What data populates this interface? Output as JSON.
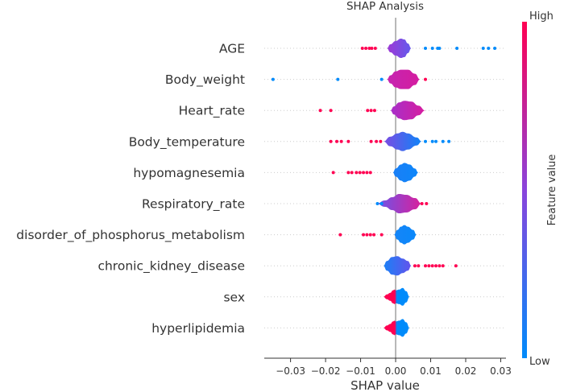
{
  "chart_data": {
    "type": "violin",
    "title": "SHAP Analysis",
    "xlabel": "SHAP value",
    "ylabel": "",
    "xlim": [
      -0.0375,
      0.0315
    ],
    "xticks": [
      -0.03,
      -0.02,
      -0.01,
      0.0,
      0.01,
      0.02,
      0.03
    ],
    "xtick_labels": [
      "−0.03",
      "−0.02",
      "−0.01",
      "0.00",
      "0.01",
      "0.02",
      "0.03"
    ],
    "colorbar": {
      "label": "Feature value",
      "high_label": "High",
      "low_label": "Low",
      "high_color": "#ff0052",
      "low_color": "#008bfb"
    },
    "features": [
      {
        "name": "AGE",
        "shape": [
          [
            -0.0025,
            0
          ],
          [
            -0.0015,
            5
          ],
          [
            0,
            9
          ],
          [
            0.0015,
            12
          ],
          [
            0.0025,
            11
          ],
          [
            0.0035,
            6
          ],
          [
            0.0045,
            0
          ]
        ],
        "color_left": "#9a3bd6",
        "color_right": "#6a56ea",
        "color_left_x": -0.002,
        "color_right_x": 0.0035,
        "high_points": [
          -0.0095,
          -0.0085,
          -0.0075,
          -0.0068,
          -0.0058
        ],
        "low_points": [
          0.0085,
          0.0105,
          0.012,
          0.0125,
          0.0175,
          0.025,
          0.0265,
          0.0283
        ]
      },
      {
        "name": "Body_weight",
        "shape": [
          [
            -0.0025,
            0
          ],
          [
            -0.0015,
            5
          ],
          [
            0,
            10
          ],
          [
            0.0015,
            12
          ],
          [
            0.0035,
            12
          ],
          [
            0.0055,
            7
          ],
          [
            0.007,
            0
          ]
        ],
        "color_left": "#c624b0",
        "color_right": "#d41da0",
        "color_left_x": -0.002,
        "color_right_x": 0.0065,
        "high_points": [
          0.0085
        ],
        "low_points": [
          -0.035,
          -0.0165,
          -0.004
        ]
      },
      {
        "name": "Heart_rate",
        "shape": [
          [
            -0.0015,
            0
          ],
          [
            -0.0005,
            5
          ],
          [
            0.001,
            10
          ],
          [
            0.0025,
            12
          ],
          [
            0.0045,
            11
          ],
          [
            0.0065,
            6
          ],
          [
            0.0085,
            0
          ]
        ],
        "color_left": "#a630ca",
        "color_right": "#d81c9e",
        "color_left_x": -0.0015,
        "color_right_x": 0.0085,
        "high_points": [
          -0.0215,
          -0.0185,
          -0.008,
          -0.007,
          -0.006
        ],
        "low_points": []
      },
      {
        "name": "Body_temperature",
        "shape": [
          [
            -0.0035,
            0
          ],
          [
            -0.0015,
            6
          ],
          [
            0.0005,
            10
          ],
          [
            0.002,
            12
          ],
          [
            0.0035,
            10
          ],
          [
            0.006,
            5
          ],
          [
            0.0075,
            0
          ]
        ],
        "color_left": "#7d4be2",
        "color_right": "#0d84f8",
        "color_left_x": -0.0035,
        "color_right_x": 0.0075,
        "high_points": [
          -0.0185,
          -0.0168,
          -0.0155,
          -0.0135,
          -0.007,
          -0.0055,
          -0.0043
        ],
        "low_points": [
          0.0085,
          0.0105,
          0.0115,
          0.0135,
          0.0152
        ]
      },
      {
        "name": "hypomagnesemia",
        "shape": [
          [
            -0.0008,
            0
          ],
          [
            0,
            5
          ],
          [
            0.0015,
            10
          ],
          [
            0.0025,
            12
          ],
          [
            0.004,
            10
          ],
          [
            0.0055,
            5
          ],
          [
            0.0065,
            0
          ]
        ],
        "color_left": "#1a7ff6",
        "color_right": "#0d86fa",
        "color_left_x": -0.0008,
        "color_right_x": 0.0065,
        "high_points": [
          -0.0178,
          -0.0135,
          -0.0125,
          -0.0112,
          -0.0102,
          -0.0092,
          -0.0082,
          -0.0072
        ],
        "low_points": []
      },
      {
        "name": "Respiratory_rate",
        "shape": [
          [
            -0.0055,
            0
          ],
          [
            -0.003,
            4
          ],
          [
            -0.001,
            8
          ],
          [
            0.001,
            12
          ],
          [
            0.003,
            11
          ],
          [
            0.0055,
            7
          ],
          [
            0.0075,
            0
          ]
        ],
        "color_left": "#6a56ea",
        "color_right": "#da1f9b",
        "color_left_x": -0.0055,
        "color_right_x": 0.0075,
        "high_points": [
          0.0075,
          0.0088
        ],
        "low_points": [
          -0.0052,
          -0.004
        ]
      },
      {
        "name": "disorder_of_phosphorus_metabolism",
        "shape": [
          [
            -0.0005,
            0
          ],
          [
            0.0005,
            6
          ],
          [
            0.0015,
            10
          ],
          [
            0.0025,
            12
          ],
          [
            0.0035,
            10
          ],
          [
            0.005,
            6
          ],
          [
            0.006,
            0
          ]
        ],
        "color_left": "#1585f8",
        "color_right": "#0a88fa",
        "color_left_x": -0.0005,
        "color_right_x": 0.006,
        "high_points": [
          -0.0158,
          -0.0092,
          -0.0082,
          -0.0072,
          -0.0062,
          -0.004
        ],
        "low_points": []
      },
      {
        "name": "chronic_kidney_disease",
        "shape": [
          [
            -0.0035,
            0
          ],
          [
            -0.0025,
            6
          ],
          [
            -0.001,
            11
          ],
          [
            0.0005,
            12
          ],
          [
            0.002,
            9
          ],
          [
            0.0035,
            6
          ],
          [
            0.0045,
            0
          ]
        ],
        "color_left": "#1b81f6",
        "color_right": "#6452ec",
        "color_left_x": -0.0035,
        "color_right_x": 0.0045,
        "high_points": [
          0.0055,
          0.0065,
          0.0085,
          0.0095,
          0.0105,
          0.0115,
          0.0125,
          0.0135,
          0.0172
        ],
        "low_points": []
      },
      {
        "name": "sex",
        "shape": [
          [
            -0.0035,
            0
          ],
          [
            -0.0025,
            3
          ],
          [
            -0.0015,
            5
          ],
          [
            -0.0008,
            8
          ],
          [
            -0.0003,
            9
          ],
          [
            0,
            8
          ],
          [
            0.001,
            9
          ],
          [
            0.002,
            11
          ],
          [
            0.003,
            7
          ],
          [
            0.004,
            0
          ]
        ],
        "color_left": "#ff0052",
        "color_right": "#008bfb",
        "color_left_x": -0.0002,
        "color_right_x": 0.0003,
        "high_points": [],
        "low_points": []
      },
      {
        "name": "hyperlipidemia",
        "shape": [
          [
            -0.0035,
            0
          ],
          [
            -0.0025,
            3
          ],
          [
            -0.0015,
            5
          ],
          [
            -0.0008,
            8
          ],
          [
            -0.0003,
            9
          ],
          [
            0,
            8
          ],
          [
            0.001,
            9
          ],
          [
            0.002,
            11
          ],
          [
            0.003,
            7
          ],
          [
            0.004,
            0
          ]
        ],
        "color_left": "#ff0052",
        "color_right": "#008bfb",
        "color_left_x": -0.0002,
        "color_right_x": 0.0003,
        "high_points": [],
        "low_points": []
      }
    ]
  }
}
